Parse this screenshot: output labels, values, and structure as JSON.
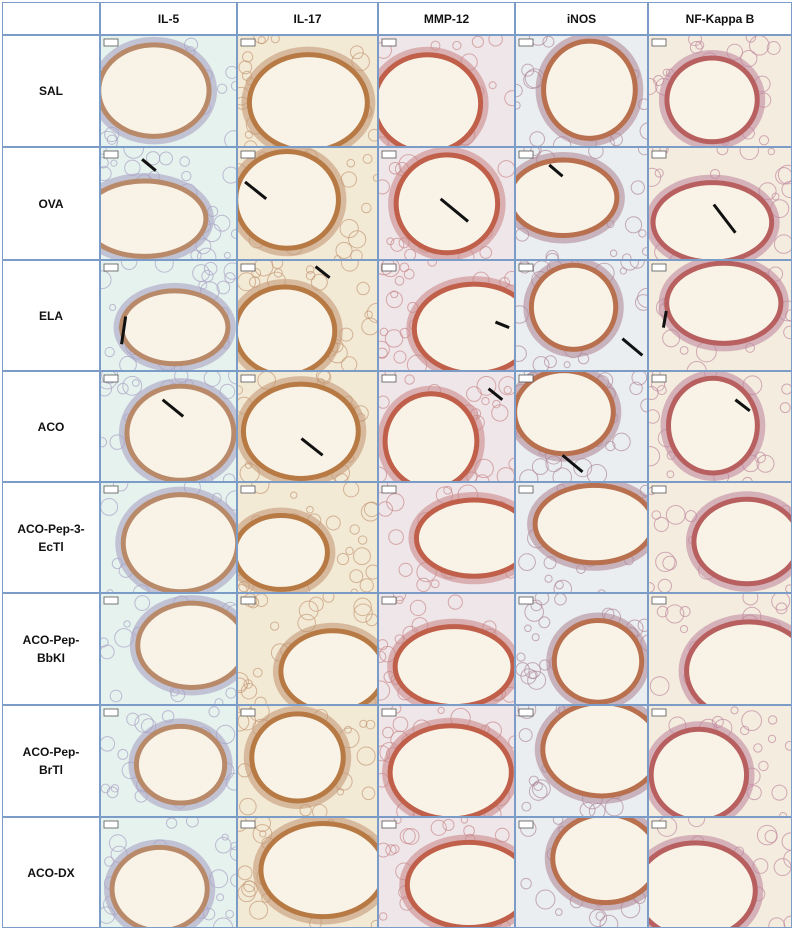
{
  "table": {
    "columns": [
      "IL-5",
      "IL-17",
      "MMP-12",
      "iNOS",
      "NF-Kappa B"
    ],
    "rows": [
      "SAL",
      "OVA",
      "ELA",
      "ACO",
      "ACO-Pep-3-EcTl",
      "ACO-Pep-BbKI",
      "ACO-Pep-BrTl",
      "ACO-DX"
    ]
  }
}
